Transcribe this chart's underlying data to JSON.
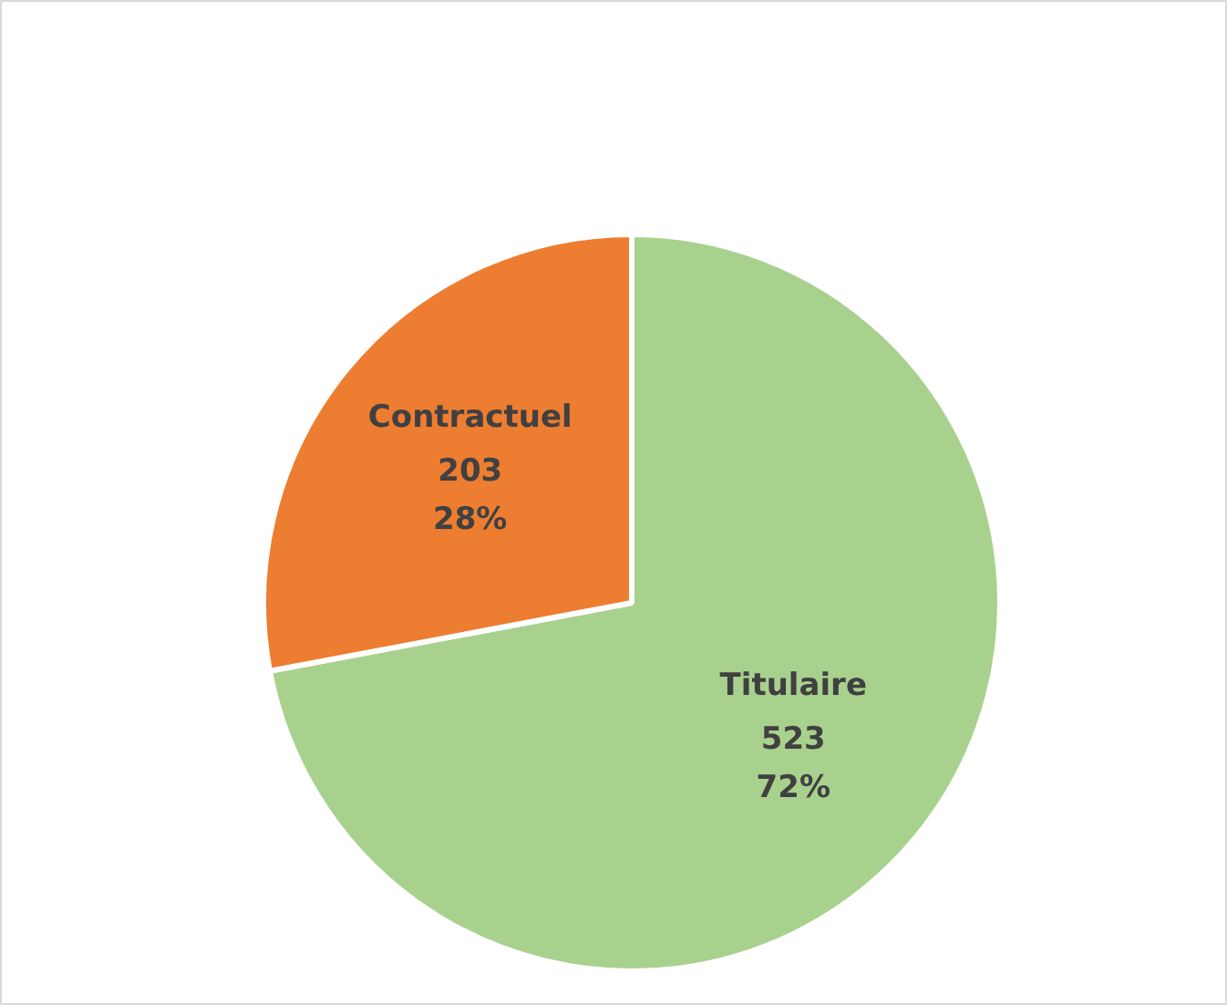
{
  "chart_data": {
    "type": "pie",
    "categories": [
      "Titulaire",
      "Contractuel"
    ],
    "values": [
      523,
      203
    ],
    "colors": [
      "#a9d18e",
      "#ed7d31"
    ],
    "value_labels": [
      "523\n72%",
      "203\n28%"
    ]
  }
}
